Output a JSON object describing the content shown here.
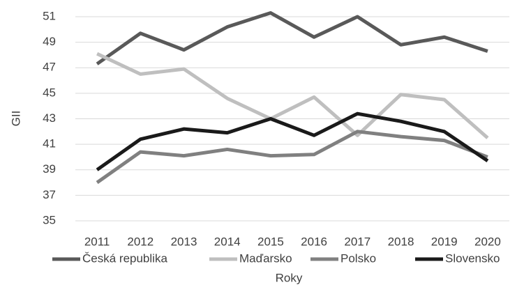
{
  "chart_data": {
    "type": "line",
    "x_label": "Roky",
    "y_label": "GII",
    "categories": [
      "2011",
      "2012",
      "2013",
      "2014",
      "2015",
      "2016",
      "2017",
      "2018",
      "2019",
      "2020"
    ],
    "series": [
      {
        "name": "Česká republika",
        "color": "#595959",
        "values": [
          47.3,
          49.7,
          48.4,
          50.2,
          51.3,
          49.4,
          51.0,
          48.8,
          49.4,
          48.3
        ]
      },
      {
        "name": "Maďarsko",
        "color": "#bfbfbf",
        "values": [
          48.1,
          46.5,
          46.9,
          44.6,
          43.0,
          44.7,
          41.7,
          44.9,
          44.5,
          41.5
        ]
      },
      {
        "name": "Polsko",
        "color": "#808080",
        "values": [
          38.0,
          40.4,
          40.1,
          40.6,
          40.1,
          40.2,
          42.0,
          41.6,
          41.3,
          40.0
        ]
      },
      {
        "name": "Slovensko",
        "color": "#1a1a1a",
        "values": [
          39.0,
          41.4,
          42.2,
          41.9,
          43.0,
          41.7,
          43.4,
          42.8,
          42.0,
          39.7
        ]
      }
    ],
    "ylim": [
      35,
      51
    ],
    "yticks": [
      35,
      37,
      39,
      41,
      43,
      45,
      47,
      49,
      51
    ],
    "grid": true,
    "legend": "bottom"
  }
}
